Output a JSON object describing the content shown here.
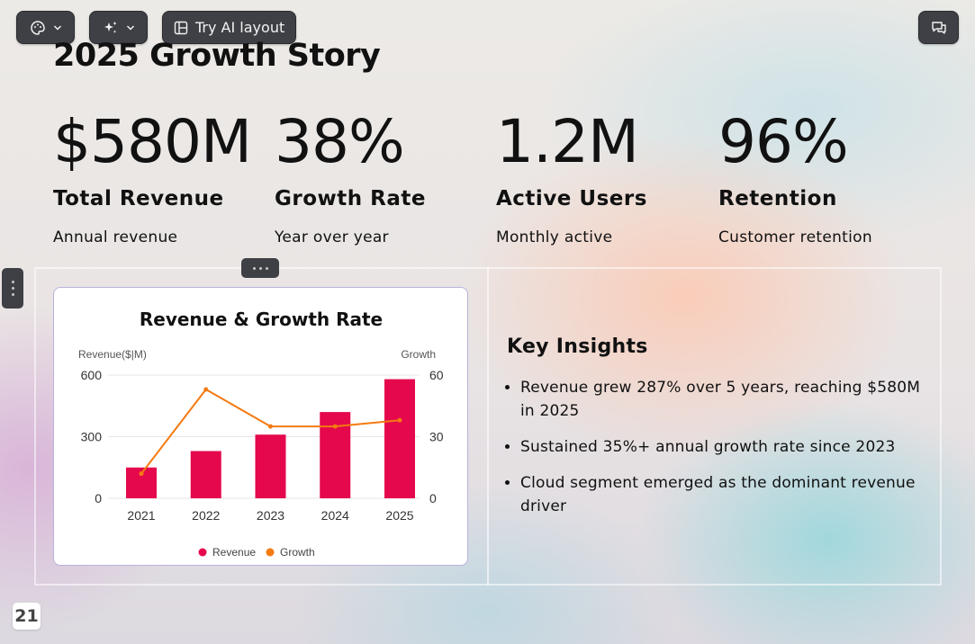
{
  "toolbar": {
    "theme_icon": "palette-icon",
    "ai_icon": "sparkles-icon",
    "layout_icon": "layout-icon",
    "ai_layout_label": "Try AI layout",
    "chat_icon": "comments-icon"
  },
  "slide": {
    "title": "2025 Growth Story",
    "stats": [
      {
        "value": "$580M",
        "label": "Total Revenue",
        "sub": "Annual revenue"
      },
      {
        "value": "38%",
        "label": "Growth Rate",
        "sub": "Year over year"
      },
      {
        "value": "1.2M",
        "label": "Active Users",
        "sub": "Monthly active"
      },
      {
        "value": "96%",
        "label": "Retention",
        "sub": "Customer retention"
      }
    ],
    "insights": {
      "heading": "Key Insights",
      "items": [
        "Revenue grew 287% over 5 years, reaching $580M in 2025",
        "Sustained 35%+ annual growth rate since 2023",
        "Cloud segment emerged as the dominant revenue driver"
      ]
    },
    "page_number": "21"
  },
  "colors": {
    "revenue": "#e5084c",
    "growth": "#f47a12",
    "toolbar": "#3f4045"
  },
  "chart_data": {
    "type": "bar",
    "title": "Revenue & Growth Rate",
    "categories": [
      "2021",
      "2022",
      "2023",
      "2024",
      "2025"
    ],
    "series": [
      {
        "name": "Revenue",
        "type": "bar",
        "axis": "left",
        "values": [
          150,
          230,
          310,
          420,
          580
        ]
      },
      {
        "name": "Growth",
        "type": "line",
        "axis": "right",
        "values": [
          12,
          53,
          35,
          35,
          38
        ]
      }
    ],
    "ylabel": "Revenue($|M)",
    "y2label": "Growth",
    "ylim": [
      0,
      600
    ],
    "y2lim": [
      0,
      60
    ],
    "yticks": [
      "0",
      "300",
      "600"
    ],
    "y2ticks": [
      "0",
      "30",
      "60"
    ],
    "grid": true,
    "legend": "bottom"
  }
}
